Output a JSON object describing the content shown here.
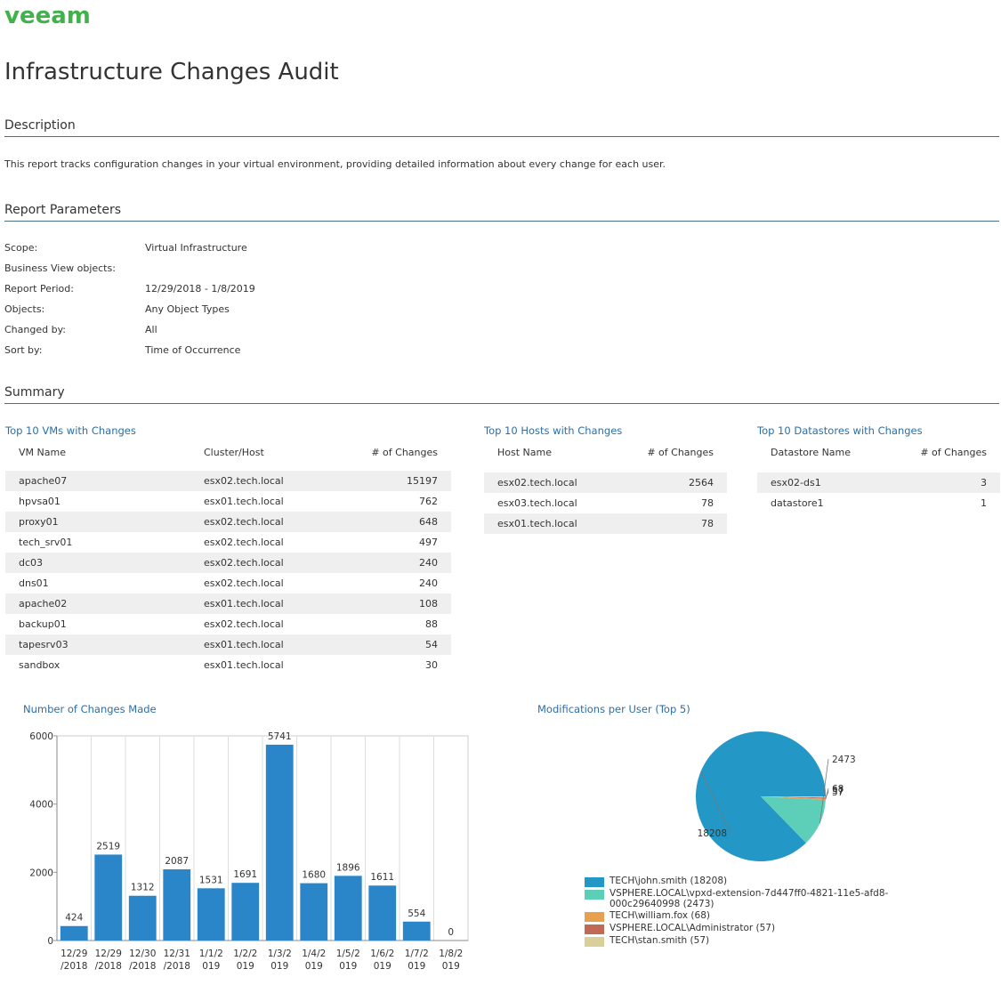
{
  "logo": "veeam",
  "title": "Infrastructure Changes Audit",
  "sections": {
    "description": "Description",
    "parameters": "Report Parameters",
    "summary": "Summary"
  },
  "description_text": "This report tracks configuration changes in your virtual environment, providing detailed information about every change for each user.",
  "parameters": [
    {
      "label": "Scope:",
      "value": "Virtual Infrastructure"
    },
    {
      "label": "Business View objects:",
      "value": ""
    },
    {
      "label": "Report Period:",
      "value": "12/29/2018 - 1/8/2019"
    },
    {
      "label": "Objects:",
      "value": "Any Object Types"
    },
    {
      "label": "Changed by:",
      "value": "All"
    },
    {
      "label": "Sort by:",
      "value": "Time of Occurrence"
    }
  ],
  "vms": {
    "title": "Top 10 VMs with Changes",
    "headers": [
      "VM Name",
      "Cluster/Host",
      "# of Changes"
    ],
    "rows": [
      [
        "apache07",
        "esx02.tech.local",
        "15197"
      ],
      [
        "hpvsa01",
        "esx01.tech.local",
        "762"
      ],
      [
        "proxy01",
        "esx02.tech.local",
        "648"
      ],
      [
        "tech_srv01",
        "esx02.tech.local",
        "497"
      ],
      [
        "dc03",
        "esx02.tech.local",
        "240"
      ],
      [
        "dns01",
        "esx02.tech.local",
        "240"
      ],
      [
        "apache02",
        "esx01.tech.local",
        "108"
      ],
      [
        "backup01",
        "esx02.tech.local",
        "88"
      ],
      [
        "tapesrv03",
        "esx01.tech.local",
        "54"
      ],
      [
        "sandbox",
        "esx01.tech.local",
        "30"
      ]
    ]
  },
  "hosts": {
    "title": "Top 10 Hosts with Changes",
    "headers": [
      "Host Name",
      "# of Changes"
    ],
    "rows": [
      [
        "esx02.tech.local",
        "2564"
      ],
      [
        "esx03.tech.local",
        "78"
      ],
      [
        "esx01.tech.local",
        "78"
      ]
    ]
  },
  "datastores": {
    "title": "Top 10 Datastores with Changes",
    "headers": [
      "Datastore Name",
      "# of Changes"
    ],
    "rows": [
      [
        "esx02-ds1",
        "3"
      ],
      [
        "datastore1",
        "1"
      ]
    ]
  },
  "chart_data": [
    {
      "type": "bar",
      "title": "Number of Changes Made",
      "categories": [
        "12/29\n/2018",
        "12/29\n/2018",
        "12/30\n/2018",
        "12/31\n/2018",
        "1/1/2\n019",
        "1/2/2\n019",
        "1/3/2\n019",
        "1/4/2\n019",
        "1/5/2\n019",
        "1/6/2\n019",
        "1/7/2\n019",
        "1/8/2\n019"
      ],
      "values": [
        424,
        2519,
        1312,
        2087,
        1531,
        1691,
        5741,
        1680,
        1896,
        1611,
        554,
        0
      ],
      "ylim": [
        0,
        6000
      ],
      "yticks": [
        0,
        2000,
        4000,
        6000
      ],
      "grid": true,
      "color": "#2a86c8"
    },
    {
      "type": "pie",
      "title": "Modifications per User (Top 5)",
      "labels": [
        "TECH\\john.smith (18208)",
        "VSPHERE.LOCAL\\vpxd-extension-7d447ff0-4821-11e5-afd8-000c29640998 (2473)",
        "TECH\\william.fox (68)",
        "VSPHERE.LOCAL\\Administrator (57)",
        "TECH\\stan.smith (57)"
      ],
      "values": [
        18208,
        2473,
        68,
        57,
        57
      ],
      "colors": [
        "#2398c6",
        "#5dcfb8",
        "#e8a050",
        "#c06a55",
        "#d9cf98"
      ],
      "data_labels": [
        "18208",
        "2473",
        "68",
        "57",
        "57"
      ]
    }
  ]
}
